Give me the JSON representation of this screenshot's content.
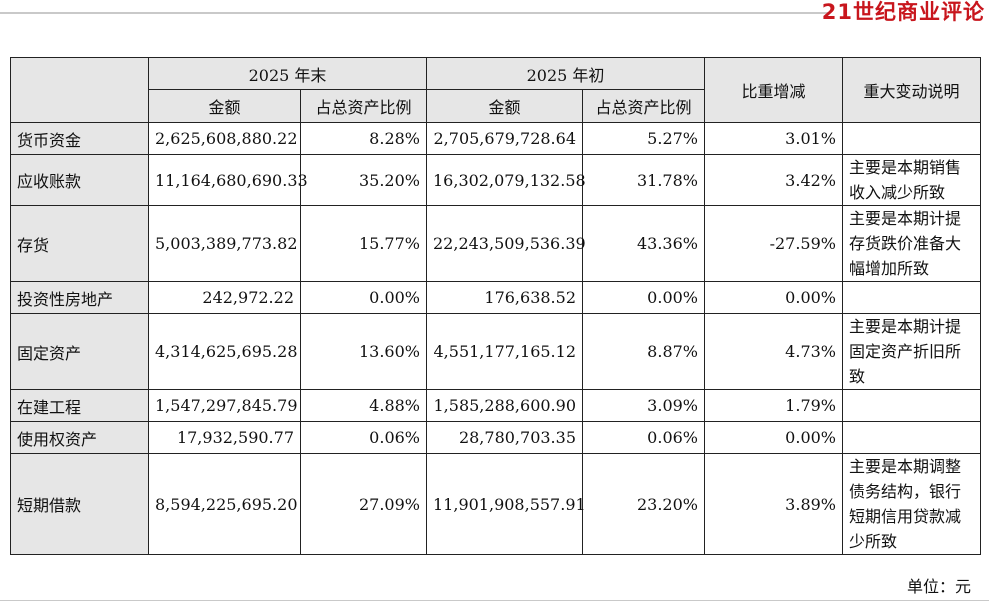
{
  "brand": "21世纪商业评论",
  "header": {
    "end_period": "2025 年末",
    "start_period": "2025 年初",
    "amount": "金额",
    "ratio": "占总资产比例",
    "change": "比重增减",
    "explanation": "重大变动说明"
  },
  "rows": [
    {
      "item": "货币资金",
      "end_amount": "2,625,608,880.22",
      "end_ratio": "8.28%",
      "start_amount": "2,705,679,728.64",
      "start_ratio": "5.27%",
      "change": "3.01%",
      "note": ""
    },
    {
      "item": "应收账款",
      "end_amount": "11,164,680,690.33",
      "end_ratio": "35.20%",
      "start_amount": "16,302,079,132.58",
      "start_ratio": "31.78%",
      "change": "3.42%",
      "note": "主要是本期销售\n收入减少所致"
    },
    {
      "item": "存货",
      "end_amount": "5,003,389,773.82",
      "end_ratio": "15.77%",
      "start_amount": "22,243,509,536.39",
      "start_ratio": "43.36%",
      "change": "-27.59%",
      "note": "主要是本期计提\n存货跌价准备大\n幅增加所致"
    },
    {
      "item": "投资性房地产",
      "end_amount": "242,972.22",
      "end_ratio": "0.00%",
      "start_amount": "176,638.52",
      "start_ratio": "0.00%",
      "change": "0.00%",
      "note": ""
    },
    {
      "item": "固定资产",
      "end_amount": "4,314,625,695.28",
      "end_ratio": "13.60%",
      "start_amount": "4,551,177,165.12",
      "start_ratio": "8.87%",
      "change": "4.73%",
      "note": "主要是本期计提\n固定资产折旧所\n致"
    },
    {
      "item": "在建工程",
      "end_amount": "1,547,297,845.79",
      "end_ratio": "4.88%",
      "start_amount": "1,585,288,600.90",
      "start_ratio": "3.09%",
      "change": "1.79%",
      "note": ""
    },
    {
      "item": "使用权资产",
      "end_amount": "17,932,590.77",
      "end_ratio": "0.06%",
      "start_amount": "28,780,703.35",
      "start_ratio": "0.06%",
      "change": "0.00%",
      "note": ""
    },
    {
      "item": "短期借款",
      "end_amount": "8,594,225,695.20",
      "end_ratio": "27.09%",
      "start_amount": "11,901,908,557.91",
      "start_ratio": "23.20%",
      "change": "3.89%",
      "note": "主要是本期调整\n债务结构，银行\n短期信用贷款减\n少所致"
    }
  ],
  "unit": "单位：元"
}
